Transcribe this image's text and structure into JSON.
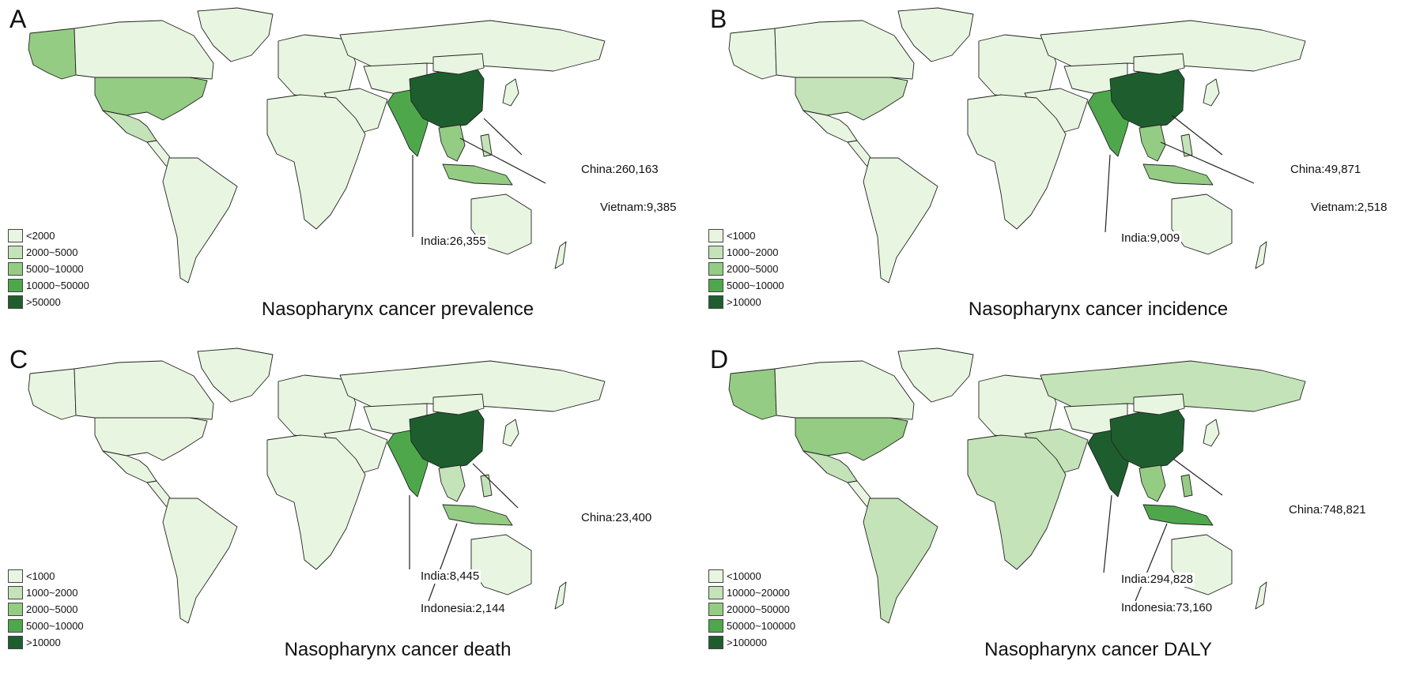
{
  "colors": {
    "level1": "#e8f5e0",
    "level2": "#c4e3b8",
    "level3": "#94cc83",
    "level4": "#4ea84b",
    "level5": "#1e5e2e",
    "ocean": "#ffffff"
  },
  "panels": [
    {
      "letter": "A",
      "title": "Nasopharynx cancer prevalence",
      "legend": [
        "<2000",
        "2000~5000",
        "5000~10000",
        "10000~50000",
        ">50000"
      ],
      "levels": {
        "north_america_n": 1,
        "alaska": 3,
        "usa": 3,
        "mexico": 2,
        "central_america": 1,
        "south_america": 1,
        "greenland": 1,
        "europe": 1,
        "russia": 1,
        "middle_east": 1,
        "central_asia": 1,
        "africa": 1,
        "south_asia": 4,
        "china": 5,
        "mongolia": 1,
        "japan": 1,
        "se_asia_mainland": 3,
        "indonesia": 3,
        "philippines": 2,
        "australia": 1,
        "new_zealand": 1
      },
      "annotations": [
        {
          "text": "China:260,163"
        },
        {
          "text": "Vietnam:9,385"
        },
        {
          "text": "India:26,355"
        }
      ]
    },
    {
      "letter": "B",
      "title": "Nasopharynx cancer incidence",
      "legend": [
        "<1000",
        "1000~2000",
        "2000~5000",
        "5000~10000",
        ">10000"
      ],
      "levels": {
        "north_america_n": 1,
        "alaska": 1,
        "usa": 2,
        "mexico": 1,
        "central_america": 1,
        "south_america": 1,
        "greenland": 1,
        "europe": 1,
        "russia": 1,
        "middle_east": 1,
        "central_asia": 1,
        "africa": 1,
        "south_asia": 4,
        "china": 5,
        "mongolia": 1,
        "japan": 1,
        "se_asia_mainland": 3,
        "indonesia": 3,
        "philippines": 2,
        "australia": 1,
        "new_zealand": 1
      },
      "annotations": [
        {
          "text": "China:49,871"
        },
        {
          "text": "Vietnam:2,518"
        },
        {
          "text": "India:9,009"
        }
      ]
    },
    {
      "letter": "C",
      "title": "Nasopharynx cancer death",
      "legend": [
        "<1000",
        "1000~2000",
        "2000~5000",
        "5000~10000",
        ">10000"
      ],
      "levels": {
        "north_america_n": 1,
        "alaska": 1,
        "usa": 1,
        "mexico": 1,
        "central_america": 1,
        "south_america": 1,
        "greenland": 1,
        "europe": 1,
        "russia": 1,
        "middle_east": 1,
        "central_asia": 1,
        "africa": 1,
        "south_asia": 4,
        "china": 5,
        "mongolia": 1,
        "japan": 1,
        "se_asia_mainland": 2,
        "indonesia": 3,
        "philippines": 2,
        "australia": 1,
        "new_zealand": 1
      },
      "annotations": [
        {
          "text": "China:23,400"
        },
        {
          "text": "India:8,445"
        },
        {
          "text": "Indonesia:2,144"
        }
      ]
    },
    {
      "letter": "D",
      "title": "Nasopharynx cancer DALY",
      "legend": [
        "<10000",
        "10000~20000",
        "20000~50000",
        "50000~100000",
        ">100000"
      ],
      "levels": {
        "north_america_n": 1,
        "alaska": 3,
        "usa": 3,
        "mexico": 2,
        "central_america": 1,
        "south_america": 2,
        "greenland": 1,
        "europe": 1,
        "russia": 2,
        "middle_east": 2,
        "central_asia": 1,
        "africa": 2,
        "south_asia": 5,
        "china": 5,
        "mongolia": 1,
        "japan": 1,
        "se_asia_mainland": 3,
        "indonesia": 4,
        "philippines": 3,
        "australia": 1,
        "new_zealand": 1
      },
      "annotations": [
        {
          "text": "China:748,821"
        },
        {
          "text": "India:294,828"
        },
        {
          "text": "Indonesia:73,160"
        }
      ]
    }
  ]
}
